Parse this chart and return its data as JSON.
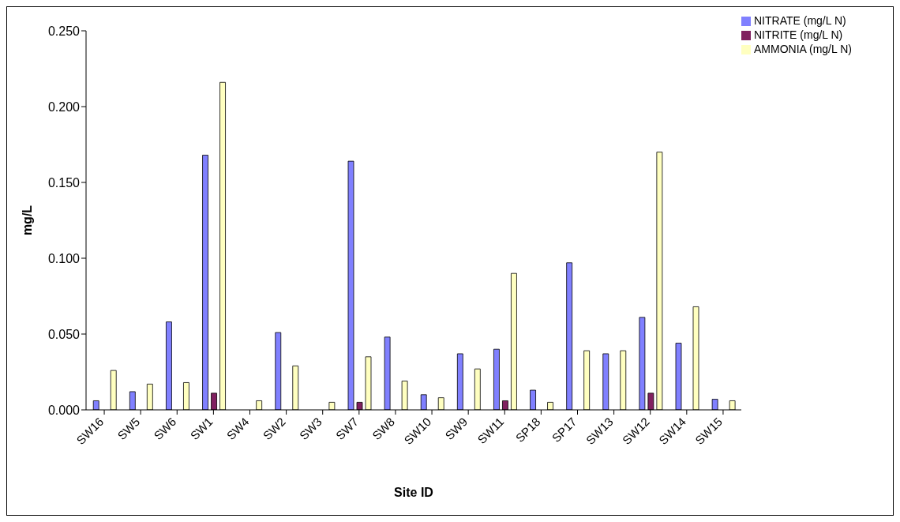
{
  "chart_data": {
    "type": "bar",
    "xlabel": "Site ID",
    "ylabel": "mg/L",
    "categories": [
      "SW16",
      "SW5",
      "SW6",
      "SW1",
      "SW4",
      "SW2",
      "SW3",
      "SW7",
      "SW8",
      "SW10",
      "SW9",
      "SW11",
      "SP18",
      "SP17",
      "SW13",
      "SW12",
      "SW14",
      "SW15"
    ],
    "series": [
      {
        "name": "NITRATE (mg/L N)",
        "color": "#8080ff",
        "values": [
          0.006,
          0.012,
          0.058,
          0.168,
          0,
          0.051,
          0,
          0.164,
          0.048,
          0.01,
          0.037,
          0.04,
          0.013,
          0.097,
          0.037,
          0.061,
          0.044,
          0.007
        ]
      },
      {
        "name": "NITRITE (mg/L N)",
        "color": "#802060",
        "values": [
          0,
          0,
          0,
          0.011,
          0,
          0,
          0,
          0.005,
          0,
          0,
          0,
          0.006,
          0,
          0,
          0,
          0.011,
          0,
          0
        ]
      },
      {
        "name": "AMMONIA (mg/L N)",
        "color": "#ffffc0",
        "values": [
          0.026,
          0.017,
          0.018,
          0.216,
          0.006,
          0.029,
          0.005,
          0.035,
          0.019,
          0.008,
          0.027,
          0.09,
          0.005,
          0.039,
          0.039,
          0.17,
          0.068,
          0.006
        ]
      }
    ],
    "ylim": [
      0,
      0.25
    ],
    "yticks": [
      {
        "value": 0,
        "label": "0.000"
      },
      {
        "value": 0.05,
        "label": "0.050"
      },
      {
        "value": 0.1,
        "label": "0.100"
      },
      {
        "value": 0.15,
        "label": "0.150"
      },
      {
        "value": 0.2,
        "label": "0.200"
      },
      {
        "value": 0.25,
        "label": "0.250"
      }
    ],
    "grid": false,
    "legend": "top right"
  }
}
